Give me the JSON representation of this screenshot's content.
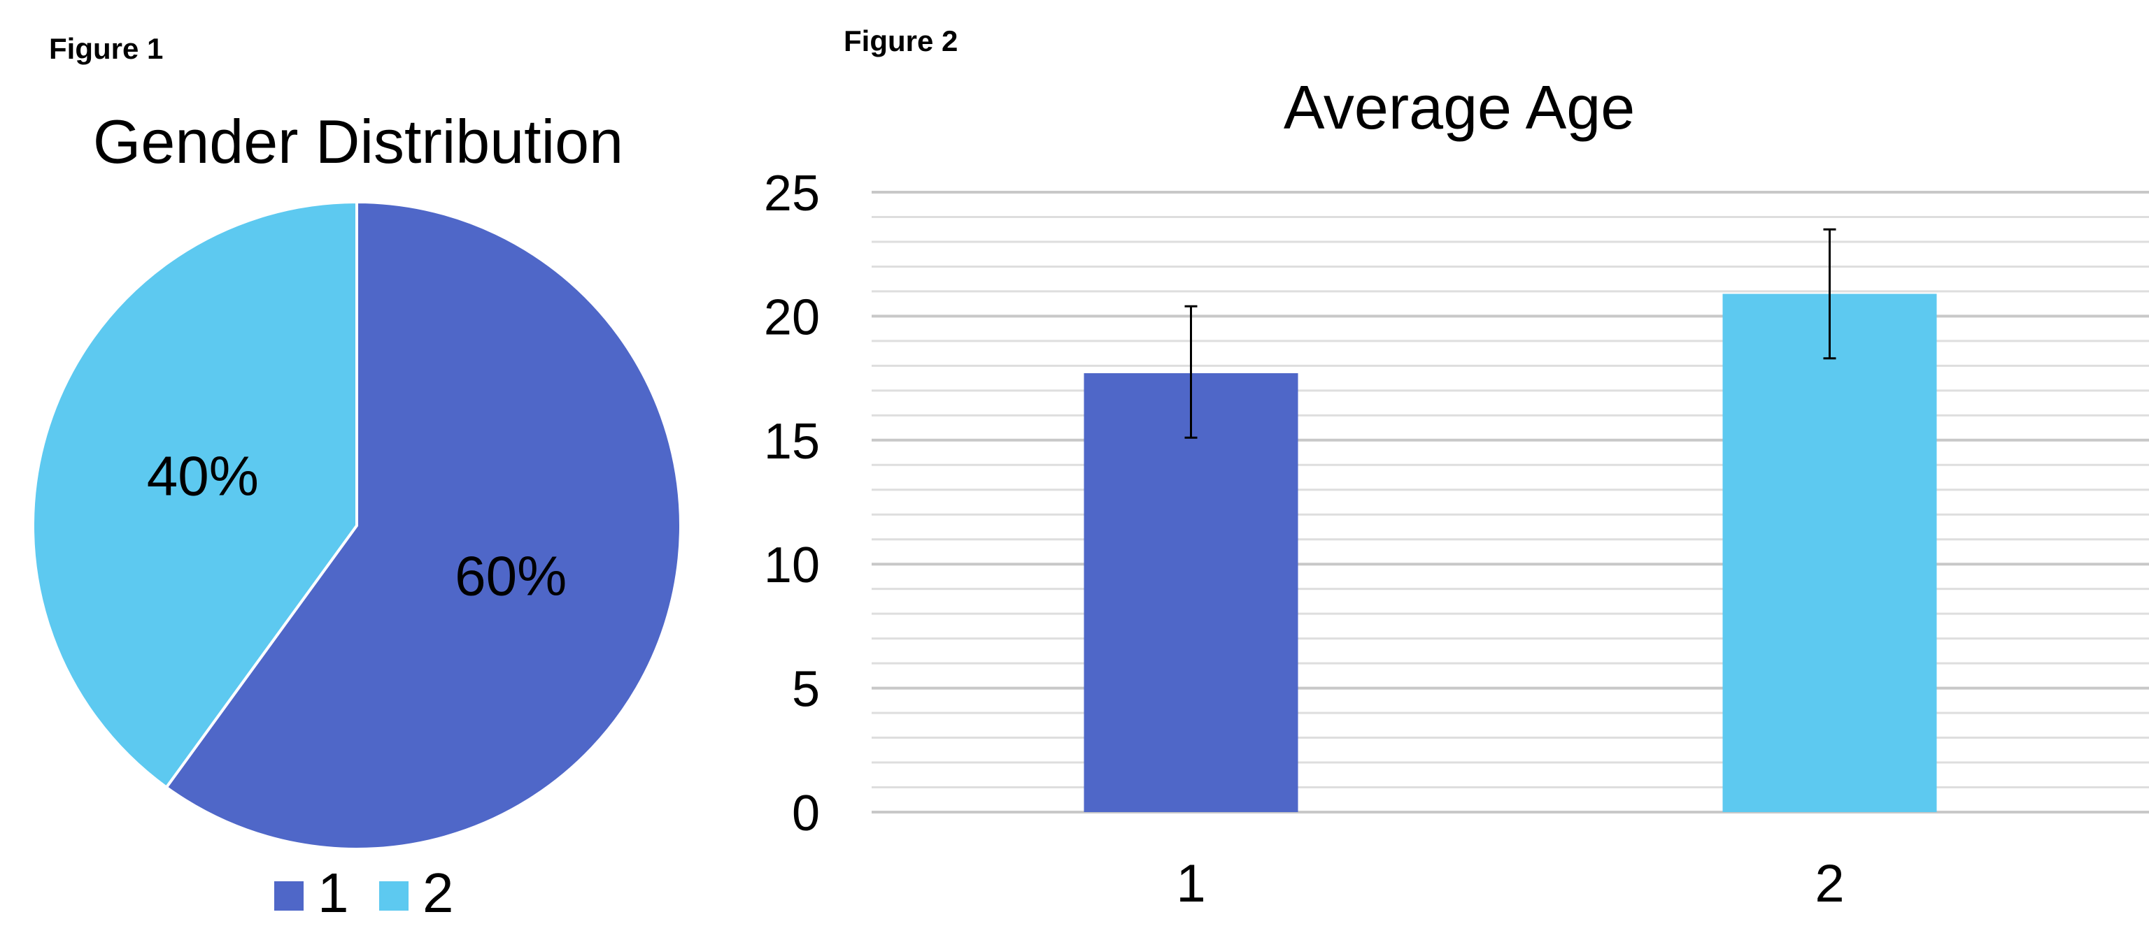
{
  "chart_data": [
    {
      "figure_label": "Figure 1",
      "type": "pie",
      "title": "Gender Distribution",
      "categories": [
        "1",
        "2"
      ],
      "values": [
        60,
        40
      ],
      "labels": [
        "60%",
        "40%"
      ],
      "colors": [
        "#4F67C8",
        "#5DC9F0"
      ],
      "legend": {
        "position": "bottom",
        "entries": [
          "1",
          "2"
        ]
      }
    },
    {
      "figure_label": "Figure 2",
      "type": "bar",
      "title": "Average Age",
      "categories": [
        "1",
        "2"
      ],
      "values": [
        17.7,
        20.9
      ],
      "error_bars": [
        {
          "low": 15.1,
          "high": 20.4
        },
        {
          "low": 18.3,
          "high": 23.5
        }
      ],
      "colors": [
        "#4F67C8",
        "#5DC9F0"
      ],
      "ylim": [
        0,
        25
      ],
      "yticks": [
        "0",
        "5",
        "10",
        "15",
        "20",
        "25"
      ],
      "grid": true,
      "xlabel": "",
      "ylabel": ""
    }
  ]
}
